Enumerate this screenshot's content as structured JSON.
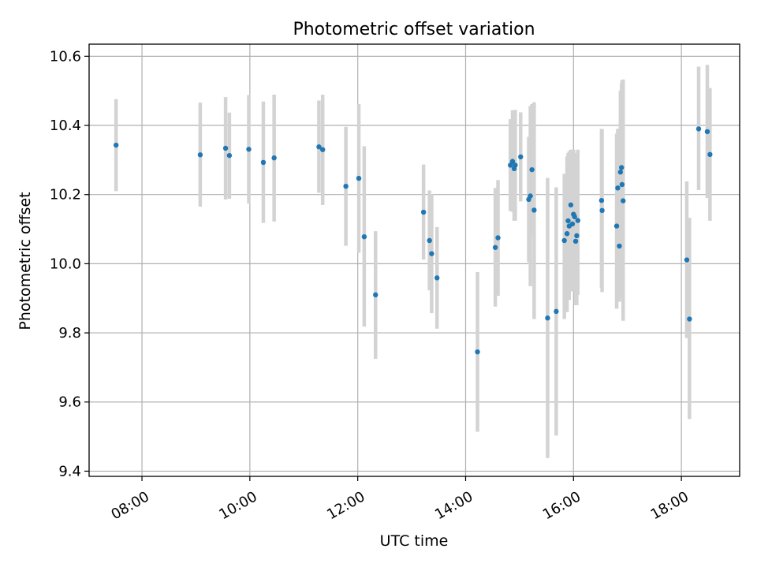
{
  "chart_data": {
    "type": "scatter",
    "title": "Photometric offset variation",
    "xlabel": "UTC time",
    "ylabel": "Photometric offset",
    "x_unit": "hours",
    "xlim": [
      7.02,
      19.08
    ],
    "ylim": [
      9.385,
      10.635
    ],
    "x_ticks": [
      {
        "value": 8,
        "label": "08:00"
      },
      {
        "value": 10,
        "label": "10:00"
      },
      {
        "value": 12,
        "label": "12:00"
      },
      {
        "value": 14,
        "label": "14:00"
      },
      {
        "value": 16,
        "label": "16:00"
      },
      {
        "value": 18,
        "label": "18:00"
      }
    ],
    "y_ticks": [
      {
        "value": 9.4,
        "label": "9.4"
      },
      {
        "value": 9.6,
        "label": "9.6"
      },
      {
        "value": 9.8,
        "label": "9.8"
      },
      {
        "value": 10.0,
        "label": "10.0"
      },
      {
        "value": 10.2,
        "label": "10.2"
      },
      {
        "value": 10.4,
        "label": "10.4"
      },
      {
        "value": 10.6,
        "label": "10.6"
      }
    ],
    "grid": true,
    "colors": {
      "point": "#1f77b4",
      "errorbar": "#d3d3d3",
      "grid": "#b0b0b0"
    },
    "points": [
      {
        "x": 7.52,
        "y": 10.343,
        "lo": 10.21,
        "hi": 10.476
      },
      {
        "x": 9.08,
        "y": 10.315,
        "lo": 10.165,
        "hi": 10.466
      },
      {
        "x": 9.55,
        "y": 10.334,
        "lo": 10.186,
        "hi": 10.482
      },
      {
        "x": 9.62,
        "y": 10.313,
        "lo": 10.188,
        "hi": 10.437
      },
      {
        "x": 9.98,
        "y": 10.331,
        "lo": 10.174,
        "hi": 10.488
      },
      {
        "x": 10.25,
        "y": 10.293,
        "lo": 10.118,
        "hi": 10.469
      },
      {
        "x": 10.45,
        "y": 10.306,
        "lo": 10.122,
        "hi": 10.489
      },
      {
        "x": 11.28,
        "y": 10.338,
        "lo": 10.205,
        "hi": 10.472
      },
      {
        "x": 11.35,
        "y": 10.33,
        "lo": 10.17,
        "hi": 10.489
      },
      {
        "x": 11.78,
        "y": 10.224,
        "lo": 10.052,
        "hi": 10.396
      },
      {
        "x": 12.02,
        "y": 10.247,
        "lo": 10.032,
        "hi": 10.462
      },
      {
        "x": 12.12,
        "y": 10.078,
        "lo": 9.818,
        "hi": 10.34
      },
      {
        "x": 12.33,
        "y": 9.91,
        "lo": 9.725,
        "hi": 10.094
      },
      {
        "x": 13.22,
        "y": 10.149,
        "lo": 10.012,
        "hi": 10.287
      },
      {
        "x": 13.33,
        "y": 10.067,
        "lo": 9.923,
        "hi": 10.212
      },
      {
        "x": 13.37,
        "y": 10.029,
        "lo": 9.857,
        "hi": 10.201
      },
      {
        "x": 13.47,
        "y": 9.959,
        "lo": 9.812,
        "hi": 10.106
      },
      {
        "x": 14.22,
        "y": 9.745,
        "lo": 9.514,
        "hi": 9.976
      },
      {
        "x": 14.55,
        "y": 10.047,
        "lo": 9.876,
        "hi": 10.219
      },
      {
        "x": 14.6,
        "y": 10.075,
        "lo": 9.907,
        "hi": 10.242
      },
      {
        "x": 14.83,
        "y": 10.285,
        "lo": 10.152,
        "hi": 10.418
      },
      {
        "x": 14.87,
        "y": 10.296,
        "lo": 10.15,
        "hi": 10.444
      },
      {
        "x": 14.9,
        "y": 10.275,
        "lo": 10.124,
        "hi": 10.425
      },
      {
        "x": 14.92,
        "y": 10.285,
        "lo": 10.125,
        "hi": 10.445
      },
      {
        "x": 15.02,
        "y": 10.309,
        "lo": 10.18,
        "hi": 10.438
      },
      {
        "x": 15.17,
        "y": 10.186,
        "lo": 10.005,
        "hi": 10.367
      },
      {
        "x": 15.2,
        "y": 10.196,
        "lo": 9.935,
        "hi": 10.456
      },
      {
        "x": 15.23,
        "y": 10.272,
        "lo": 10.082,
        "hi": 10.462
      },
      {
        "x": 15.27,
        "y": 10.155,
        "lo": 9.84,
        "hi": 10.467
      },
      {
        "x": 15.52,
        "y": 9.843,
        "lo": 9.438,
        "hi": 10.248
      },
      {
        "x": 15.68,
        "y": 9.862,
        "lo": 9.503,
        "hi": 10.221
      },
      {
        "x": 15.83,
        "y": 10.067,
        "lo": 9.84,
        "hi": 10.26
      },
      {
        "x": 15.88,
        "y": 10.087,
        "lo": 9.86,
        "hi": 10.31
      },
      {
        "x": 15.9,
        "y": 10.124,
        "lo": 9.9,
        "hi": 10.32
      },
      {
        "x": 15.92,
        "y": 10.109,
        "lo": 9.895,
        "hi": 10.325
      },
      {
        "x": 15.95,
        "y": 10.17,
        "lo": 9.98,
        "hi": 10.33
      },
      {
        "x": 15.98,
        "y": 10.115,
        "lo": 9.92,
        "hi": 10.32
      },
      {
        "x": 16.0,
        "y": 10.143,
        "lo": 9.94,
        "hi": 10.33
      },
      {
        "x": 16.02,
        "y": 10.136,
        "lo": 9.93,
        "hi": 10.32
      },
      {
        "x": 16.04,
        "y": 10.065,
        "lo": 9.88,
        "hi": 10.3
      },
      {
        "x": 16.06,
        "y": 10.081,
        "lo": 9.88,
        "hi": 10.3
      },
      {
        "x": 16.08,
        "y": 10.125,
        "lo": 9.91,
        "hi": 10.33
      },
      {
        "x": 16.52,
        "y": 10.183,
        "lo": 9.93,
        "hi": 10.39
      },
      {
        "x": 16.53,
        "y": 10.154,
        "lo": 9.918,
        "hi": 10.388
      },
      {
        "x": 16.8,
        "y": 10.109,
        "lo": 9.87,
        "hi": 10.376
      },
      {
        "x": 16.82,
        "y": 10.219,
        "lo": 10.05,
        "hi": 10.39
      },
      {
        "x": 16.85,
        "y": 10.051,
        "lo": 9.89,
        "hi": 10.26
      },
      {
        "x": 16.87,
        "y": 10.265,
        "lo": 10.09,
        "hi": 10.5
      },
      {
        "x": 16.89,
        "y": 10.278,
        "lo": 10.05,
        "hi": 10.52
      },
      {
        "x": 16.9,
        "y": 10.229,
        "lo": 9.9,
        "hi": 10.53
      },
      {
        "x": 16.92,
        "y": 10.182,
        "lo": 9.835,
        "hi": 10.533
      },
      {
        "x": 18.1,
        "y": 10.011,
        "lo": 9.785,
        "hi": 10.238
      },
      {
        "x": 18.15,
        "y": 9.84,
        "lo": 9.551,
        "hi": 10.133
      },
      {
        "x": 18.32,
        "y": 10.39,
        "lo": 10.213,
        "hi": 10.57
      },
      {
        "x": 18.48,
        "y": 10.382,
        "lo": 10.19,
        "hi": 10.575
      },
      {
        "x": 18.53,
        "y": 10.316,
        "lo": 10.124,
        "hi": 10.508
      }
    ]
  }
}
